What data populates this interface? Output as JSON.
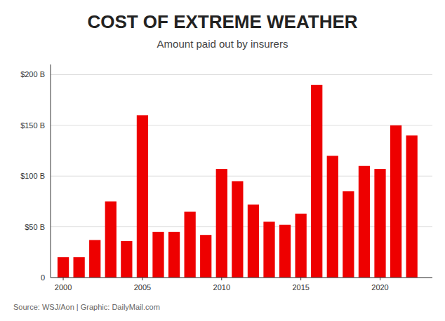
{
  "chart_data": {
    "type": "bar",
    "title": "COST OF EXTREME WEATHER",
    "subtitle": "Amount paid out by insurers",
    "source": "Source: WSJ/Aon  |  Graphic: DailyMail.com",
    "x": [
      2000,
      2001,
      2002,
      2003,
      2004,
      2005,
      2006,
      2007,
      2008,
      2009,
      2010,
      2011,
      2012,
      2013,
      2014,
      2015,
      2016,
      2017,
      2018,
      2019,
      2020,
      2021,
      2022
    ],
    "values": [
      20,
      20,
      37,
      75,
      36,
      160,
      45,
      45,
      65,
      42,
      107,
      95,
      72,
      55,
      52,
      63,
      190,
      120,
      85,
      110,
      107,
      150,
      140
    ],
    "color": "#ee0000",
    "xlim": [
      1999.2,
      2023.3
    ],
    "xticks": [
      2000,
      2005,
      2010,
      2015,
      2020
    ],
    "ylim": [
      0,
      210
    ],
    "yticks": [
      0,
      {
        "value": 50,
        "label": "$50 B"
      },
      {
        "value": 100,
        "label": "$100 B"
      },
      {
        "value": 150,
        "label": "$150 B"
      },
      {
        "value": 200,
        "label": "$200 B"
      }
    ],
    "grid": true
  }
}
